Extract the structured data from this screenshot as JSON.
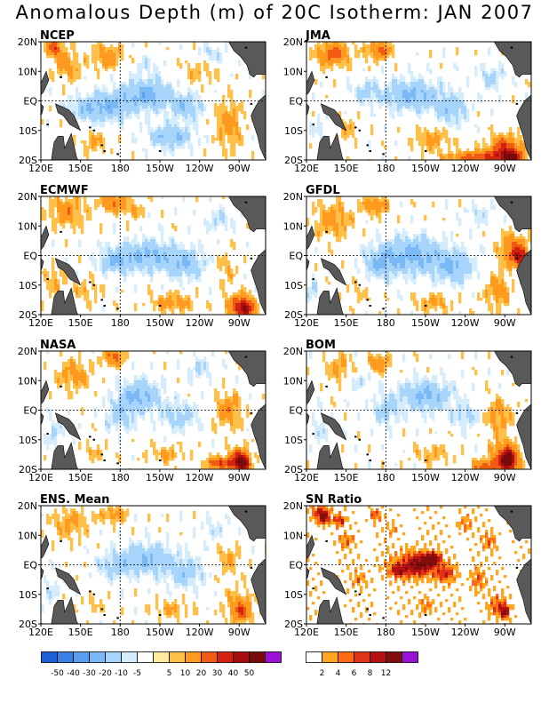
{
  "title": "Anomalous Depth (m) of 20C Isotherm: JAN 2007",
  "axes": {
    "lon_ticks": [
      "120E",
      "150E",
      "180",
      "150W",
      "120W",
      "90W"
    ],
    "lat_ticks": [
      "20N",
      "10N",
      "EQ",
      "10S",
      "20S"
    ]
  },
  "colors": {
    "land": "#595959",
    "anomaly_scale": [
      "#1f5fd6",
      "#3a7fe6",
      "#5a9cf0",
      "#7ab8f6",
      "#a6d4fa",
      "#d4ecfc",
      "#ffffff",
      "#ffeaa0",
      "#ffc04a",
      "#ff9a1e",
      "#f05a14",
      "#d42210",
      "#a80e0e",
      "#7a0a0a",
      "#9a10d4"
    ],
    "snr_scale": [
      "#ffffff",
      "#ffa51e",
      "#ff6a14",
      "#e03214",
      "#b41212",
      "#820c0c",
      "#9a10d4"
    ]
  },
  "legend_anomaly": {
    "labels": [
      "-50",
      "-40",
      "-30",
      "-20",
      "-10",
      "-5",
      "5",
      "10",
      "20",
      "30",
      "40",
      "50"
    ]
  },
  "legend_snr": {
    "labels": [
      "2",
      "4",
      "6",
      "8",
      "12"
    ]
  },
  "chart_data": [
    {
      "type": "heatmap",
      "title": "NCEP",
      "variable": "20C isotherm depth anomaly",
      "units": "m",
      "xlim": [
        "120E",
        "70W"
      ],
      "ylim": [
        "20S",
        "20N"
      ],
      "features": {
        "neg_center": "-20 to -30 near EQ 170W-140W",
        "pos_center": "+10 to +30 north of 10N and in far eastern Pacific"
      }
    },
    {
      "type": "heatmap",
      "title": "JMA",
      "variable": "20C isotherm depth anomaly",
      "units": "m",
      "xlim": [
        "120E",
        "70W"
      ],
      "ylim": [
        "20S",
        "20N"
      ],
      "features": {
        "neg_center": "-20 near EQ 150W",
        "pos_center": "+30 to +40 near 20S 85W"
      }
    },
    {
      "type": "heatmap",
      "title": "ECMWF",
      "variable": "20C isotherm depth anomaly",
      "units": "m",
      "xlim": [
        "120E",
        "70W"
      ],
      "ylim": [
        "20S",
        "20N"
      ],
      "features": {
        "neg_center": "-20 to -30 near EQ 160W-130W",
        "pos_center": "+20 to +30 near 20S 90W"
      }
    },
    {
      "type": "heatmap",
      "title": "GFDL",
      "variable": "20C isotherm depth anomaly",
      "units": "m",
      "xlim": [
        "120E",
        "70W"
      ],
      "ylim": [
        "20S",
        "20N"
      ],
      "features": {
        "neg_center": "-20 to -30 near EQ 160W-130W",
        "pos_center": "+20 to +30 near EQ 80W"
      }
    },
    {
      "type": "heatmap",
      "title": "NASA",
      "variable": "20C isotherm depth anomaly",
      "units": "m",
      "xlim": [
        "120E",
        "70W"
      ],
      "ylim": [
        "20S",
        "20N"
      ],
      "features": {
        "neg_center": "-20 near 5N 150W",
        "pos_center": "+40 to +50 near 18S 90W"
      }
    },
    {
      "type": "heatmap",
      "title": "BOM",
      "variable": "20C isotherm depth anomaly",
      "units": "m",
      "xlim": [
        "120E",
        "70W"
      ],
      "ylim": [
        "20S",
        "20N"
      ],
      "features": {
        "neg_center": "-20 to -30 near 5N 150W-130W",
        "pos_center": "+40 to +50 near 18S 90W"
      }
    },
    {
      "type": "heatmap",
      "title": "ENS. Mean",
      "variable": "20C isotherm depth anomaly",
      "units": "m",
      "xlim": [
        "120E",
        "70W"
      ],
      "ylim": [
        "20S",
        "20N"
      ],
      "features": {
        "neg_center": "-20 near EQ 160W-130W",
        "pos_center": "+10 to +20 in eastern Pacific"
      }
    },
    {
      "type": "heatmap",
      "title": "SN Ratio",
      "variable": "signal to noise ratio",
      "xlim": [
        "120E",
        "70W"
      ],
      "ylim": [
        "20S",
        "20N"
      ],
      "features": {
        "high_center": "4 to 12 near EQ 160W-130W and western Pacific"
      }
    }
  ]
}
